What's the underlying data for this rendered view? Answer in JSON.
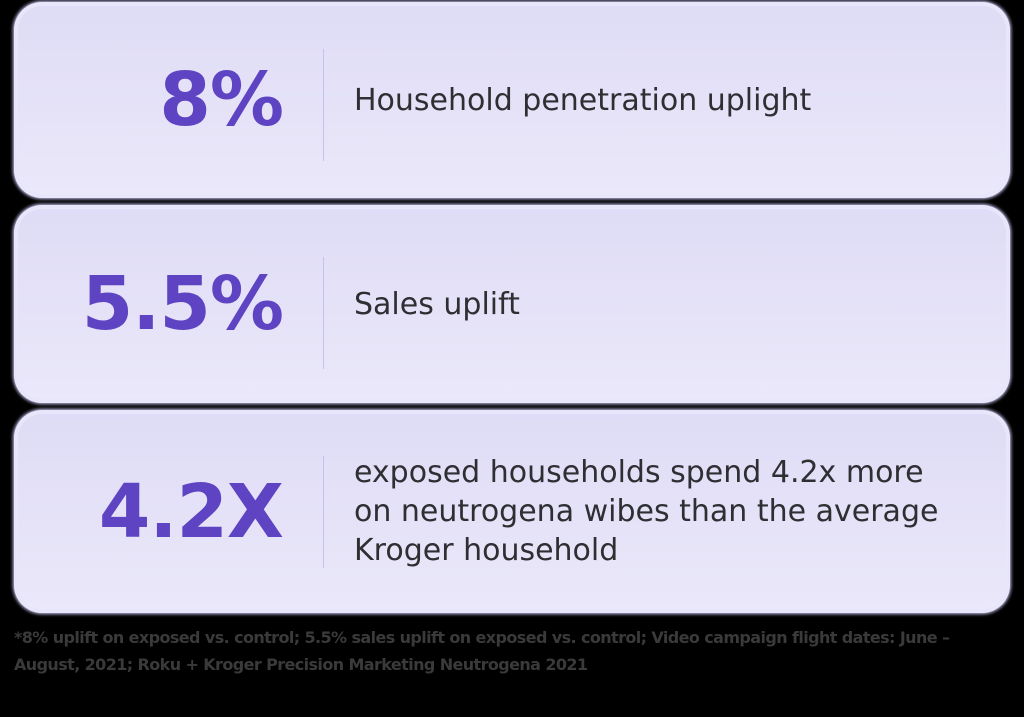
{
  "stats": [
    {
      "value": "8%",
      "description": "Household penetration uplight"
    },
    {
      "value": "5.5%",
      "description": "Sales uplift"
    },
    {
      "value": "4.2X",
      "description": "exposed households spend 4.2x more on neutrogena wibes than the average Kroger household"
    }
  ],
  "footnote": "*8% uplift on exposed vs. control; 5.5% sales uplift on exposed vs. control; Video campaign flight dates: June – August, 2021; Roku + Kroger Precision Marketing Neutrogena 2021",
  "colors": {
    "accent": "#5e43c2",
    "card_bg": "#e3e0f8",
    "text": "#2f2f33",
    "background": "#000000"
  }
}
